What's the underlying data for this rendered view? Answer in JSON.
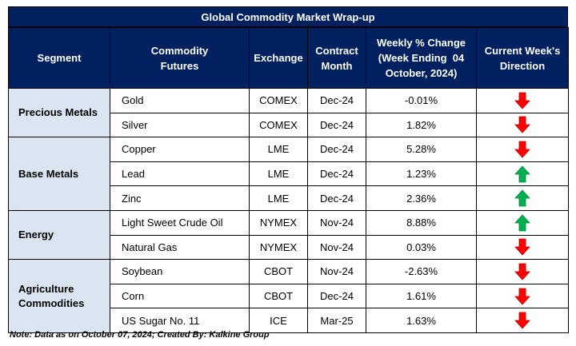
{
  "title": "Global Commodity Market Wrap-up",
  "headers": {
    "segment": "Segment",
    "commodity": "Commodity Futures",
    "exchange": "Exchange",
    "contract": "Contract Month",
    "change_line1": "Weekly % Change",
    "change_line2": "(Week Ending  04",
    "change_line3": "October, 2024)",
    "direction": "Current Week's Direction"
  },
  "segments": [
    {
      "name_line1": "Precious Metals",
      "name_line2": ""
    },
    {
      "name_line1": "Base Metals",
      "name_line2": ""
    },
    {
      "name_line1": "Energy",
      "name_line2": ""
    },
    {
      "name_line1": "Agriculture",
      "name_line2": "Commodities"
    }
  ],
  "rows": [
    {
      "commodity": "Gold",
      "exchange": "COMEX",
      "contract": "Dec-24",
      "change": "-0.01%",
      "direction": "down"
    },
    {
      "commodity": "Silver",
      "exchange": "COMEX",
      "contract": "Dec-24",
      "change": "1.82%",
      "direction": "down"
    },
    {
      "commodity": "Copper",
      "exchange": "LME",
      "contract": "Dec-24",
      "change": "5.28%",
      "direction": "down"
    },
    {
      "commodity": "Lead",
      "exchange": "LME",
      "contract": "Dec-24",
      "change": "1.23%",
      "direction": "up"
    },
    {
      "commodity": "Zinc",
      "exchange": "LME",
      "contract": "Dec-24",
      "change": "2.36%",
      "direction": "up"
    },
    {
      "commodity": "Light Sweet Crude Oil",
      "exchange": "NYMEX",
      "contract": "Nov-24",
      "change": "8.88%",
      "direction": "up"
    },
    {
      "commodity": "Natural Gas",
      "exchange": "NYMEX",
      "contract": "Nov-24",
      "change": "0.03%",
      "direction": "down"
    },
    {
      "commodity": "Soybean",
      "exchange": "CBOT",
      "contract": "Nov-24",
      "change": "-2.63%",
      "direction": "down"
    },
    {
      "commodity": "Corn",
      "exchange": "CBOT",
      "contract": "Dec-24",
      "change": "1.61%",
      "direction": "down"
    },
    {
      "commodity": "US Sugar No. 11",
      "exchange": "ICE",
      "contract": "Mar-25",
      "change": "1.63%",
      "direction": "down"
    }
  ],
  "note": "Note: Data as on October 07, 2024; Created By: Kalkine Group",
  "colors": {
    "header_bg": "#002060",
    "segment_bg": "#dbe5f1",
    "arrow_up": "#00b050",
    "arrow_down": "#ff0000"
  }
}
